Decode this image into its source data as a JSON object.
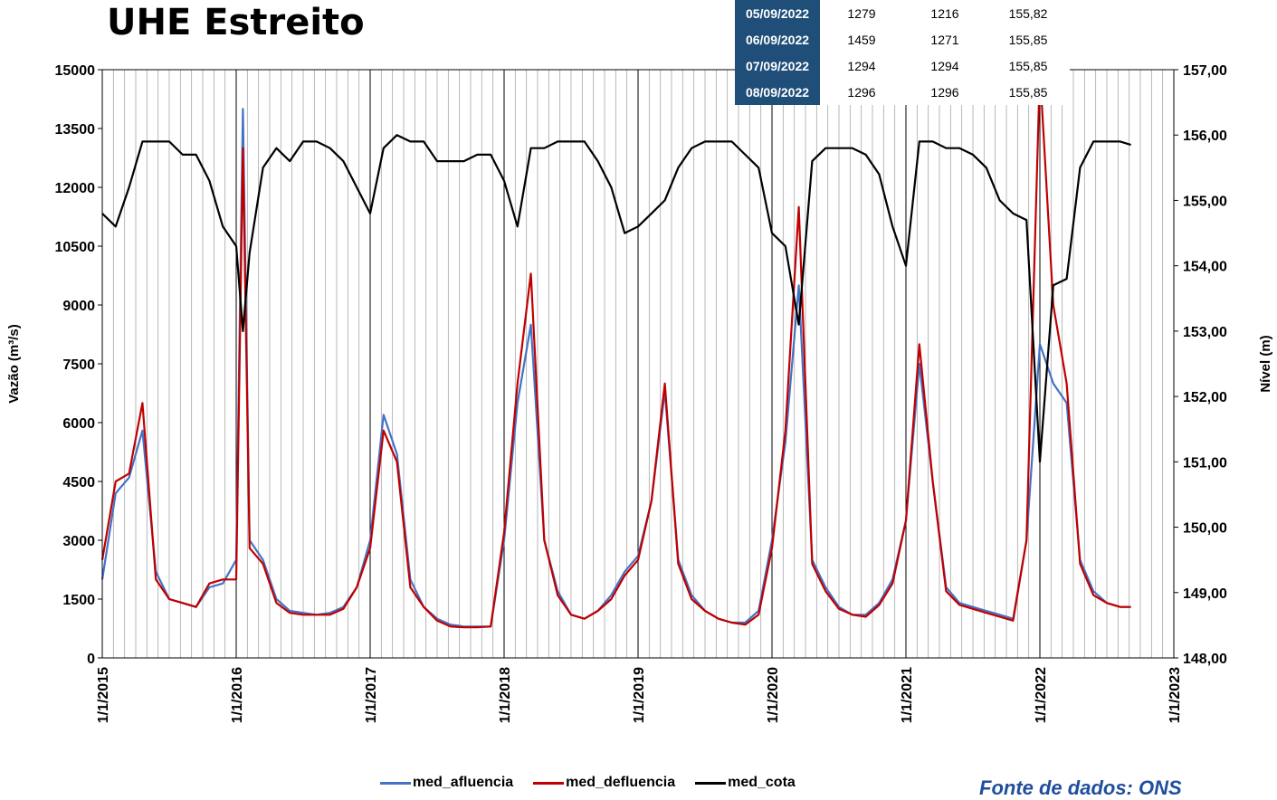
{
  "title": "UHE Estreito",
  "source": "Fonte de dados: ONS",
  "table_rows": [
    {
      "date": "05/09/2022",
      "afluencia": "1279",
      "defluencia": "1216",
      "cota": "155,82"
    },
    {
      "date": "06/09/2022",
      "afluencia": "1459",
      "defluencia": "1271",
      "cota": "155,85"
    },
    {
      "date": "07/09/2022",
      "afluencia": "1294",
      "defluencia": "1294",
      "cota": "155,85"
    },
    {
      "date": "08/09/2022",
      "afluencia": "1296",
      "defluencia": "1296",
      "cota": "155,85"
    }
  ],
  "colors": {
    "afluencia": "#4472c4",
    "defluencia": "#c00000",
    "cota": "#000000",
    "table_header": "#1f4e79",
    "source": "#1f4e9c"
  },
  "chart_data": {
    "type": "line",
    "title": "UHE Estreito",
    "xlabel": "",
    "ylabel": "Vazão (m³/s)",
    "y2label": "Nível (m)",
    "x_range": [
      "1/1/2015",
      "1/1/2023"
    ],
    "x_ticks": [
      "1/1/2015",
      "1/1/2016",
      "1/1/2017",
      "1/1/2018",
      "1/1/2019",
      "1/1/2020",
      "1/1/2021",
      "1/1/2022",
      "1/1/2023"
    ],
    "ylim": [
      0,
      15000
    ],
    "y_ticks": [
      "0",
      "1500",
      "3000",
      "4500",
      "6000",
      "7500",
      "9000",
      "10500",
      "12000",
      "13500",
      "15000"
    ],
    "y2lim": [
      148,
      157
    ],
    "y2_ticks": [
      "148,00",
      "149,00",
      "150,00",
      "151,00",
      "152,00",
      "153,00",
      "154,00",
      "155,00",
      "156,00",
      "157,00"
    ],
    "grid": "vertical, monthly",
    "legend": "bottom",
    "series": [
      {
        "name": "med_afluencia",
        "axis": "left",
        "x": [
          2015.0,
          2015.1,
          2015.2,
          2015.3,
          2015.4,
          2015.5,
          2015.6,
          2015.7,
          2015.8,
          2015.9,
          2016.0,
          2016.05,
          2016.1,
          2016.2,
          2016.3,
          2016.4,
          2016.5,
          2016.6,
          2016.7,
          2016.8,
          2016.9,
          2017.0,
          2017.1,
          2017.2,
          2017.3,
          2017.4,
          2017.5,
          2017.6,
          2017.7,
          2017.8,
          2017.9,
          2018.0,
          2018.1,
          2018.2,
          2018.3,
          2018.4,
          2018.5,
          2018.6,
          2018.7,
          2018.8,
          2018.9,
          2019.0,
          2019.1,
          2019.2,
          2019.3,
          2019.4,
          2019.5,
          2019.6,
          2019.7,
          2019.8,
          2019.9,
          2020.0,
          2020.1,
          2020.2,
          2020.3,
          2020.4,
          2020.5,
          2020.6,
          2020.7,
          2020.8,
          2020.9,
          2021.0,
          2021.1,
          2021.2,
          2021.3,
          2021.4,
          2021.5,
          2021.6,
          2021.7,
          2021.8,
          2021.9,
          2022.0,
          2022.1,
          2022.2,
          2022.3,
          2022.4,
          2022.5,
          2022.6,
          2022.68
        ],
        "values": [
          2000,
          4200,
          4600,
          5800,
          2200,
          1500,
          1400,
          1300,
          1800,
          1900,
          2500,
          14000,
          3000,
          2500,
          1500,
          1200,
          1150,
          1100,
          1150,
          1300,
          1800,
          3000,
          6200,
          5200,
          2000,
          1300,
          1000,
          850,
          800,
          800,
          800,
          3000,
          6500,
          8500,
          3000,
          1700,
          1100,
          1000,
          1200,
          1600,
          2200,
          2600,
          4000,
          6800,
          2500,
          1600,
          1200,
          1000,
          900,
          900,
          1200,
          3000,
          5500,
          9500,
          2500,
          1800,
          1300,
          1100,
          1100,
          1400,
          2000,
          3500,
          7500,
          4500,
          1800,
          1400,
          1300,
          1200,
          1100,
          1000,
          3000,
          8000,
          7000,
          6500,
          2500,
          1700,
          1400,
          1300,
          1300
        ]
      },
      {
        "name": "med_defluencia",
        "axis": "left",
        "x": [
          2015.0,
          2015.1,
          2015.2,
          2015.3,
          2015.4,
          2015.5,
          2015.6,
          2015.7,
          2015.8,
          2015.9,
          2016.0,
          2016.05,
          2016.1,
          2016.2,
          2016.3,
          2016.4,
          2016.5,
          2016.6,
          2016.7,
          2016.8,
          2016.9,
          2017.0,
          2017.1,
          2017.2,
          2017.3,
          2017.4,
          2017.5,
          2017.6,
          2017.7,
          2017.8,
          2017.9,
          2018.0,
          2018.1,
          2018.2,
          2018.3,
          2018.4,
          2018.5,
          2018.6,
          2018.7,
          2018.8,
          2018.9,
          2019.0,
          2019.1,
          2019.2,
          2019.3,
          2019.4,
          2019.5,
          2019.6,
          2019.7,
          2019.8,
          2019.9,
          2020.0,
          2020.1,
          2020.2,
          2020.3,
          2020.4,
          2020.5,
          2020.6,
          2020.7,
          2020.8,
          2020.9,
          2021.0,
          2021.1,
          2021.2,
          2021.3,
          2021.4,
          2021.5,
          2021.6,
          2021.7,
          2021.8,
          2021.9,
          2022.0,
          2022.1,
          2022.2,
          2022.3,
          2022.4,
          2022.5,
          2022.6,
          2022.68
        ],
        "values": [
          2500,
          4500,
          4700,
          6500,
          2000,
          1500,
          1400,
          1300,
          1900,
          2000,
          2000,
          13000,
          2800,
          2400,
          1400,
          1150,
          1100,
          1100,
          1100,
          1250,
          1800,
          2800,
          5800,
          5000,
          1800,
          1300,
          950,
          800,
          780,
          780,
          800,
          3200,
          7000,
          9800,
          3000,
          1600,
          1100,
          1000,
          1200,
          1500,
          2100,
          2500,
          4000,
          7000,
          2400,
          1500,
          1200,
          1000,
          900,
          850,
          1100,
          2800,
          5800,
          11500,
          2400,
          1700,
          1250,
          1100,
          1050,
          1350,
          1900,
          3500,
          8000,
          4500,
          1700,
          1350,
          1250,
          1150,
          1050,
          950,
          3000,
          15000,
          9000,
          7000,
          2400,
          1600,
          1400,
          1300,
          1300
        ]
      },
      {
        "name": "med_cota",
        "axis": "right",
        "x": [
          2015.0,
          2015.1,
          2015.2,
          2015.3,
          2015.4,
          2015.5,
          2015.6,
          2015.7,
          2015.8,
          2015.9,
          2016.0,
          2016.05,
          2016.1,
          2016.2,
          2016.3,
          2016.4,
          2016.5,
          2016.6,
          2016.7,
          2016.8,
          2016.9,
          2017.0,
          2017.1,
          2017.2,
          2017.3,
          2017.4,
          2017.5,
          2017.6,
          2017.7,
          2017.8,
          2017.9,
          2018.0,
          2018.1,
          2018.2,
          2018.3,
          2018.4,
          2018.5,
          2018.6,
          2018.7,
          2018.8,
          2018.9,
          2019.0,
          2019.1,
          2019.2,
          2019.3,
          2019.4,
          2019.5,
          2019.6,
          2019.7,
          2019.8,
          2019.9,
          2020.0,
          2020.1,
          2020.2,
          2020.3,
          2020.4,
          2020.5,
          2020.6,
          2020.7,
          2020.8,
          2020.9,
          2021.0,
          2021.1,
          2021.2,
          2021.3,
          2021.4,
          2021.5,
          2021.6,
          2021.7,
          2021.8,
          2021.9,
          2022.0,
          2022.1,
          2022.2,
          2022.3,
          2022.4,
          2022.5,
          2022.6,
          2022.68
        ],
        "values": [
          154.8,
          154.6,
          155.2,
          155.9,
          155.9,
          155.9,
          155.7,
          155.7,
          155.3,
          154.6,
          154.3,
          153.0,
          154.2,
          155.5,
          155.8,
          155.6,
          155.9,
          155.9,
          155.8,
          155.6,
          155.2,
          154.8,
          155.8,
          156.0,
          155.9,
          155.9,
          155.6,
          155.6,
          155.6,
          155.7,
          155.7,
          155.3,
          154.6,
          155.8,
          155.8,
          155.9,
          155.9,
          155.9,
          155.6,
          155.2,
          154.5,
          154.6,
          154.8,
          155.0,
          155.5,
          155.8,
          155.9,
          155.9,
          155.9,
          155.7,
          155.5,
          154.5,
          154.3,
          153.1,
          155.6,
          155.8,
          155.8,
          155.8,
          155.7,
          155.4,
          154.6,
          154.0,
          155.9,
          155.9,
          155.8,
          155.8,
          155.7,
          155.5,
          155.0,
          154.8,
          154.7,
          151.0,
          153.7,
          153.8,
          155.5,
          155.9,
          155.9,
          155.9,
          155.85
        ]
      }
    ]
  }
}
